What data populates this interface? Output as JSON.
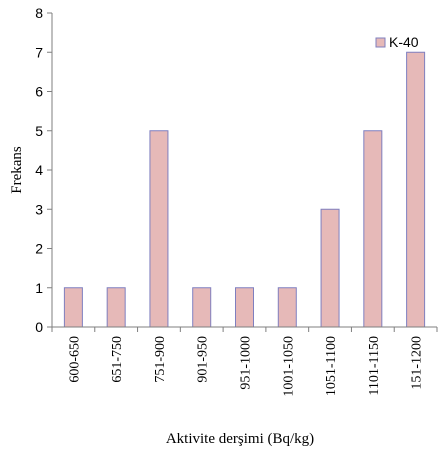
{
  "chart_data": {
    "type": "bar",
    "title": "",
    "xlabel": "Aktivite derşimi (Bq/kg)",
    "ylabel": "Frekans",
    "categories": [
      "600-650",
      "651-750",
      "751-900",
      "901-950",
      "951-1000",
      "1001-1050",
      "1051-1100",
      "1101-1150",
      "151-1200"
    ],
    "series": [
      {
        "name": "K-40",
        "values": [
          1,
          1,
          5,
          1,
          1,
          1,
          3,
          5,
          7
        ]
      }
    ],
    "ylim": [
      0,
      8
    ],
    "yticks": [
      0,
      1,
      2,
      3,
      4,
      5,
      6,
      7,
      8
    ],
    "grid": false,
    "legend_position": "top-right",
    "colors": {
      "bar_fill": "#e6b9b8",
      "bar_stroke": "#7f7fbf",
      "axis": "#7f7f7f"
    }
  }
}
